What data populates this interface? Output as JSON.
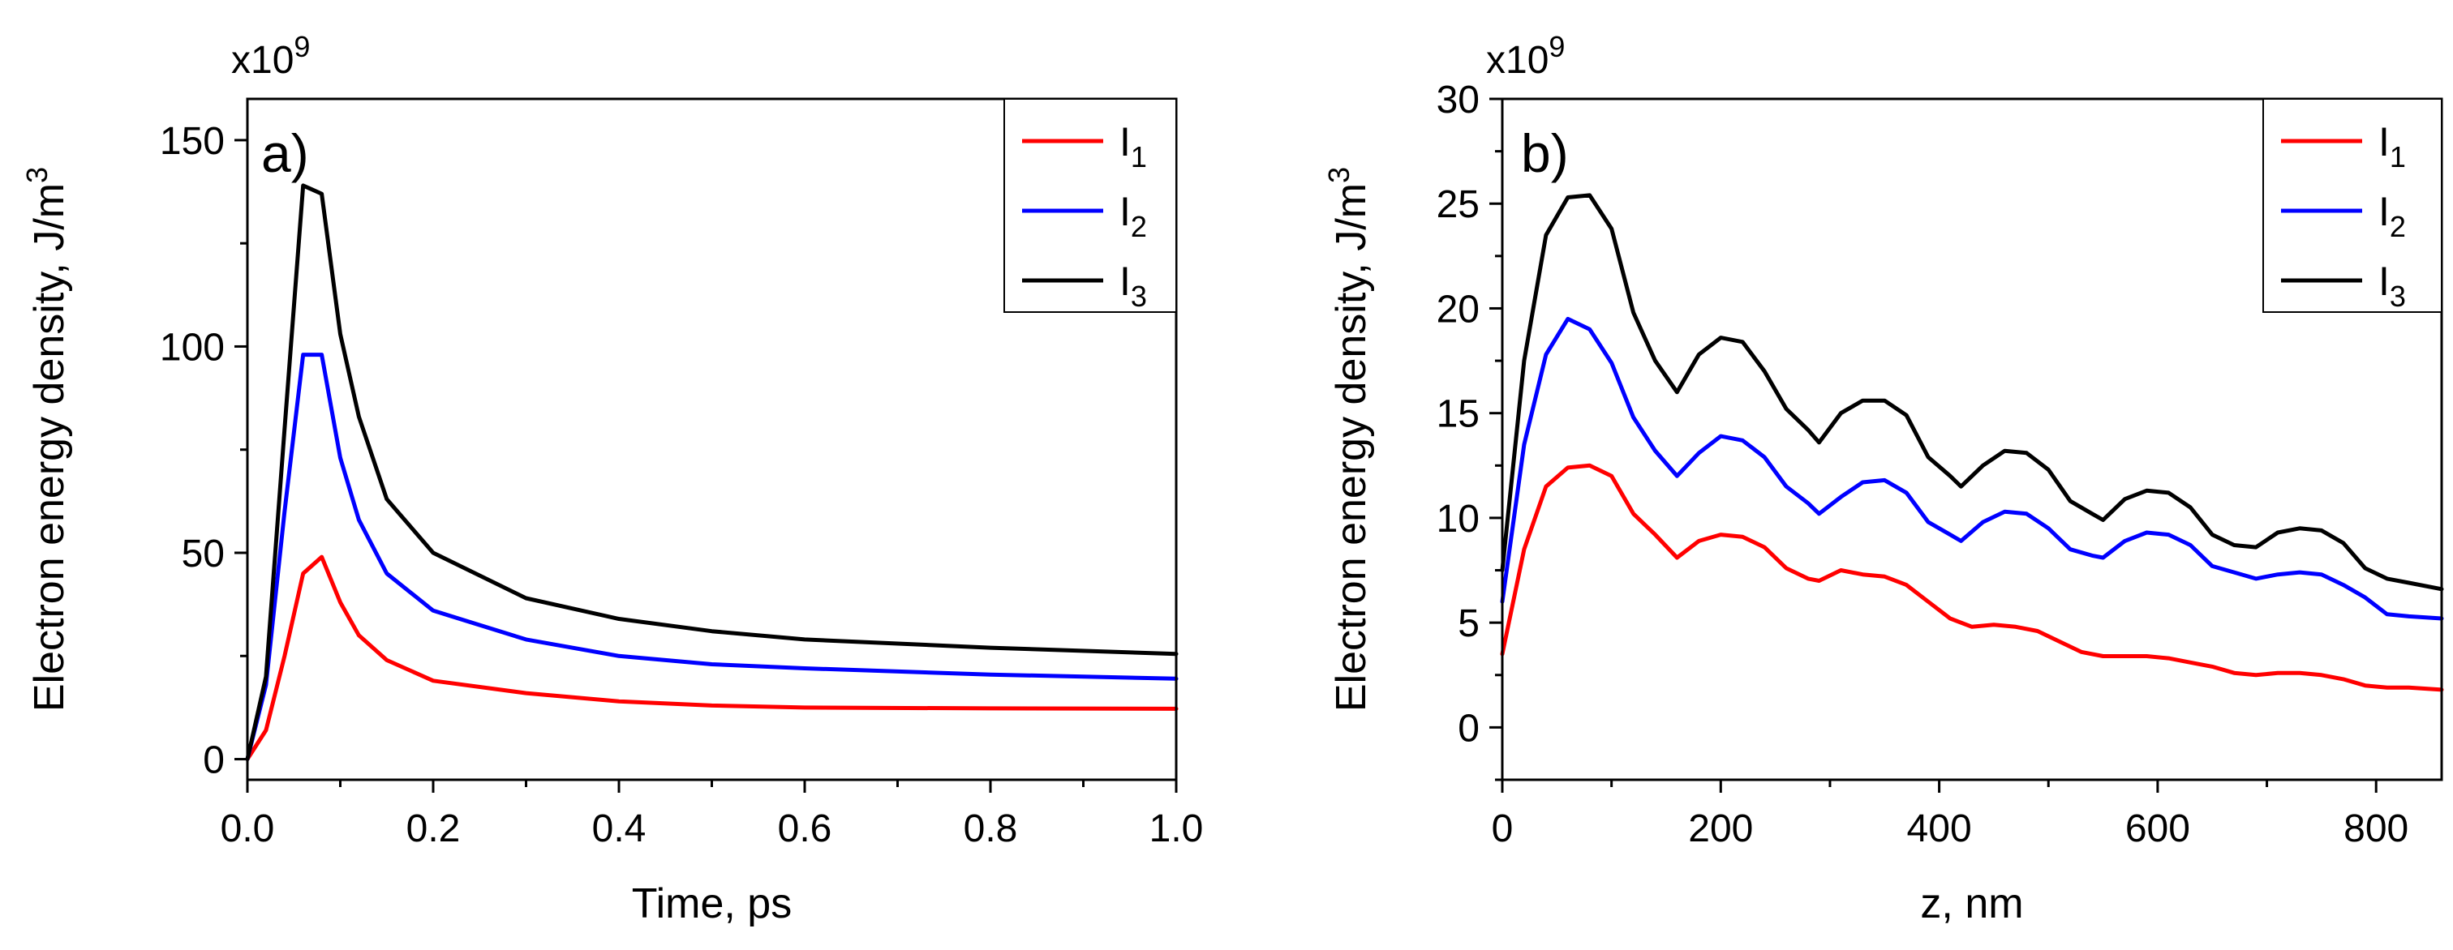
{
  "chart_data": [
    {
      "type": "line",
      "panel_label": "a)",
      "xlabel": "Time, ps",
      "ylabel": "Electron energy density, J/m",
      "ylabel_sup": "3",
      "y_multiplier": "x10",
      "y_multiplier_exp": "9",
      "xlim": [
        0,
        1.0
      ],
      "ylim": [
        -5,
        160
      ],
      "xticks": [
        0.0,
        0.2,
        0.4,
        0.6,
        0.8,
        1.0
      ],
      "xtick_labels": [
        "0.0",
        "0.2",
        "0.4",
        "0.6",
        "0.8",
        "1.0"
      ],
      "yticks": [
        0,
        50,
        100,
        150
      ],
      "ytick_labels": [
        "0",
        "50",
        "100",
        "150"
      ],
      "legend_position": "top-right",
      "series": [
        {
          "name": "I",
          "sub": "1",
          "color": "#ff0000",
          "x": [
            0,
            0.02,
            0.04,
            0.06,
            0.08,
            0.1,
            0.12,
            0.15,
            0.2,
            0.3,
            0.4,
            0.5,
            0.6,
            0.8,
            1.0
          ],
          "y": [
            0,
            7,
            25,
            45,
            49,
            38,
            30,
            24,
            19,
            16,
            14,
            13,
            12.5,
            12.3,
            12.2
          ]
        },
        {
          "name": "I",
          "sub": "2",
          "color": "#0000ff",
          "x": [
            0,
            0.02,
            0.04,
            0.06,
            0.08,
            0.1,
            0.12,
            0.15,
            0.2,
            0.3,
            0.4,
            0.5,
            0.6,
            0.8,
            1.0
          ],
          "y": [
            0,
            18,
            60,
            98,
            98,
            73,
            58,
            45,
            36,
            29,
            25,
            23,
            22,
            20.5,
            19.5
          ]
        },
        {
          "name": "I",
          "sub": "3",
          "color": "#000000",
          "x": [
            0,
            0.02,
            0.04,
            0.06,
            0.08,
            0.1,
            0.12,
            0.15,
            0.2,
            0.3,
            0.4,
            0.5,
            0.6,
            0.8,
            1.0
          ],
          "y": [
            0,
            20,
            80,
            139,
            137,
            103,
            83,
            63,
            50,
            39,
            34,
            31,
            29,
            27,
            25.5
          ]
        }
      ]
    },
    {
      "type": "line",
      "panel_label": "b)",
      "xlabel": "z, nm",
      "ylabel": "Electron energy density, J/m",
      "ylabel_sup": "3",
      "y_multiplier": "x10",
      "y_multiplier_exp": "9",
      "xlim": [
        0,
        860
      ],
      "ylim": [
        -2.5,
        30
      ],
      "xticks": [
        0,
        200,
        400,
        600,
        800
      ],
      "xtick_labels": [
        "0",
        "200",
        "400",
        "600",
        "800"
      ],
      "yticks": [
        0,
        5,
        10,
        15,
        20,
        25,
        30
      ],
      "ytick_labels": [
        "0",
        "5",
        "10",
        "15",
        "20",
        "25",
        "30"
      ],
      "legend_position": "top-right",
      "series": [
        {
          "name": "I",
          "sub": "1",
          "color": "#ff0000",
          "x": [
            0,
            20,
            40,
            60,
            80,
            100,
            120,
            140,
            160,
            180,
            200,
            220,
            240,
            260,
            280,
            290,
            310,
            330,
            350,
            370,
            390,
            410,
            430,
            450,
            470,
            490,
            510,
            530,
            550,
            570,
            590,
            610,
            630,
            650,
            670,
            690,
            710,
            730,
            750,
            770,
            790,
            810,
            830,
            860
          ],
          "y": [
            3.5,
            8.5,
            11.5,
            12.4,
            12.5,
            12.0,
            10.2,
            9.2,
            8.1,
            8.9,
            9.2,
            9.1,
            8.6,
            7.6,
            7.1,
            7.0,
            7.5,
            7.3,
            7.2,
            6.8,
            6.0,
            5.2,
            4.8,
            4.9,
            4.8,
            4.6,
            4.1,
            3.6,
            3.4,
            3.4,
            3.4,
            3.3,
            3.1,
            2.9,
            2.6,
            2.5,
            2.6,
            2.6,
            2.5,
            2.3,
            2.0,
            1.9,
            1.9,
            1.8
          ]
        },
        {
          "name": "I",
          "sub": "2",
          "color": "#0000ff",
          "x": [
            0,
            20,
            40,
            60,
            80,
            100,
            120,
            140,
            160,
            180,
            200,
            220,
            240,
            260,
            280,
            290,
            310,
            330,
            350,
            370,
            390,
            410,
            420,
            440,
            460,
            480,
            500,
            520,
            540,
            550,
            570,
            590,
            610,
            630,
            650,
            670,
            690,
            710,
            730,
            750,
            770,
            790,
            810,
            830,
            860
          ],
          "y": [
            6.0,
            13.5,
            17.8,
            19.5,
            19.0,
            17.4,
            14.8,
            13.2,
            12.0,
            13.1,
            13.9,
            13.7,
            12.9,
            11.5,
            10.7,
            10.2,
            11.0,
            11.7,
            11.8,
            11.2,
            9.8,
            9.2,
            8.9,
            9.8,
            10.3,
            10.2,
            9.5,
            8.5,
            8.2,
            8.1,
            8.9,
            9.3,
            9.2,
            8.7,
            7.7,
            7.4,
            7.1,
            7.3,
            7.4,
            7.3,
            6.8,
            6.2,
            5.4,
            5.3,
            5.2
          ]
        },
        {
          "name": "I",
          "sub": "3",
          "color": "#000000",
          "x": [
            0,
            20,
            40,
            60,
            80,
            100,
            120,
            140,
            160,
            180,
            200,
            220,
            240,
            260,
            280,
            290,
            310,
            330,
            350,
            370,
            390,
            410,
            420,
            440,
            460,
            480,
            500,
            520,
            540,
            550,
            570,
            590,
            610,
            630,
            650,
            670,
            690,
            710,
            730,
            750,
            770,
            790,
            810,
            830,
            860
          ],
          "y": [
            7.5,
            17.5,
            23.5,
            25.3,
            25.4,
            23.8,
            19.8,
            17.5,
            16.0,
            17.8,
            18.6,
            18.4,
            17.0,
            15.2,
            14.2,
            13.6,
            15.0,
            15.6,
            15.6,
            14.9,
            12.9,
            12.0,
            11.5,
            12.5,
            13.2,
            13.1,
            12.3,
            10.8,
            10.2,
            9.9,
            10.9,
            11.3,
            11.2,
            10.5,
            9.2,
            8.7,
            8.6,
            9.3,
            9.5,
            9.4,
            8.8,
            7.6,
            7.1,
            6.9,
            6.6
          ]
        }
      ]
    }
  ]
}
